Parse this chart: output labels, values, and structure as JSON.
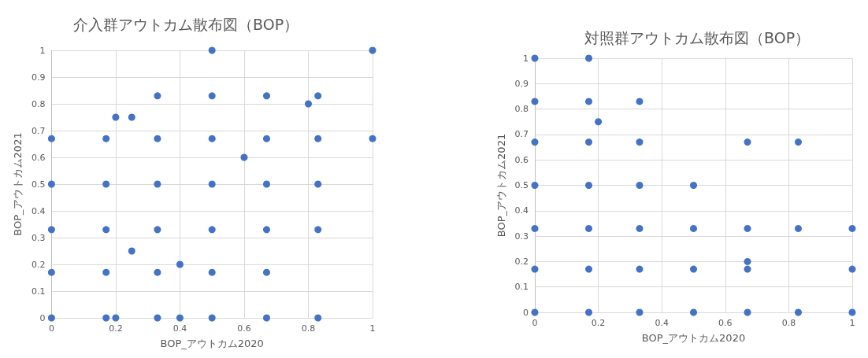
{
  "chart_data": [
    {
      "type": "scatter",
      "title": "介入群アウトカム散布図（BOP）",
      "xlabel": "BOP_アウトカム2020",
      "ylabel": "BOP_アウトカム2021",
      "grid": true,
      "marker": "circle",
      "xlim": [
        0,
        1
      ],
      "ylim": [
        0,
        1
      ],
      "xticks": [
        0,
        0.2,
        0.4,
        0.6,
        0.8,
        1
      ],
      "yticks": [
        0,
        0.1,
        0.2,
        0.3,
        0.4,
        0.5,
        0.6,
        0.7,
        0.8,
        0.9,
        1
      ],
      "series": [
        {
          "color": "#4472c4",
          "x": [
            0,
            0,
            0,
            0,
            0,
            0.17,
            0.17,
            0.17,
            0.17,
            0.17,
            0.2,
            0.2,
            0.25,
            0.25,
            0.33,
            0.33,
            0.33,
            0.33,
            0.33,
            0.33,
            0.4,
            0.4,
            0.5,
            0.5,
            0.5,
            0.5,
            0.5,
            0.5,
            0.5,
            0.6,
            0.67,
            0.67,
            0.67,
            0.67,
            0.67,
            0.67,
            0.8,
            0.83,
            0.83,
            0.83,
            0.83,
            0.83,
            1,
            1
          ],
          "values": [
            0,
            0.17,
            0.33,
            0.5,
            0.67,
            0,
            0.17,
            0.33,
            0.5,
            0.67,
            0,
            0.75,
            0.25,
            0.75,
            0,
            0.17,
            0.33,
            0.5,
            0.67,
            0.83,
            0,
            0.2,
            0,
            0.17,
            0.33,
            0.5,
            0.67,
            0.83,
            1,
            0.6,
            0,
            0.17,
            0.33,
            0.5,
            0.67,
            0.83,
            0.8,
            0,
            0.33,
            0.5,
            0.67,
            0.83,
            0.67,
            1
          ]
        }
      ]
    },
    {
      "type": "scatter",
      "title": "対照群アウトカム散布図（BOP）",
      "xlabel": "BOP_アウトカム2020",
      "ylabel": "BOP_アウトカム2021",
      "grid": true,
      "marker": "circle",
      "xlim": [
        0,
        1
      ],
      "ylim": [
        0,
        1
      ],
      "xticks": [
        0,
        0.2,
        0.4,
        0.6,
        0.8,
        1
      ],
      "yticks": [
        0,
        0.1,
        0.2,
        0.3,
        0.4,
        0.5,
        0.6,
        0.7,
        0.8,
        0.9,
        1
      ],
      "series": [
        {
          "color": "#4472c4",
          "x": [
            0,
            0,
            0,
            0,
            0,
            0,
            0,
            0.17,
            0.17,
            0.17,
            0.17,
            0.17,
            0.17,
            0.17,
            0.2,
            0.33,
            0.33,
            0.33,
            0.33,
            0.33,
            0.33,
            0.5,
            0.5,
            0.5,
            0.5,
            0.67,
            0.67,
            0.67,
            0.67,
            0.67,
            0.83,
            0.83,
            0.83,
            1,
            1,
            1
          ],
          "values": [
            0,
            0.17,
            0.33,
            0.5,
            0.67,
            0.83,
            1,
            0,
            0.17,
            0.33,
            0.5,
            0.67,
            0.83,
            1,
            0.75,
            0,
            0.17,
            0.33,
            0.5,
            0.67,
            0.83,
            0,
            0.17,
            0.33,
            0.5,
            0,
            0.17,
            0.2,
            0.33,
            0.67,
            0,
            0.33,
            0.67,
            0,
            0.17,
            0.33
          ]
        }
      ]
    }
  ]
}
